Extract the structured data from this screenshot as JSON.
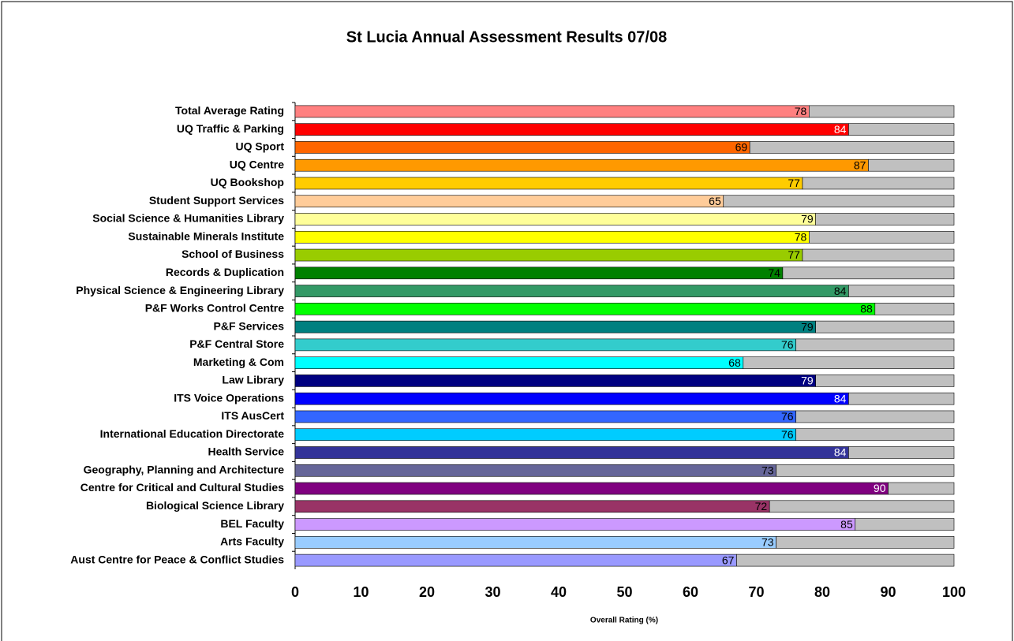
{
  "chart_data": {
    "type": "stacked-bar-horizontal",
    "title": "St Lucia Annual Assessment Results 07/08",
    "xlabel": "Overall Rating (%)",
    "categories": [
      "Total Average Rating",
      "UQ Traffic & Parking",
      "UQ Sport",
      "UQ Centre",
      "UQ Bookshop",
      "Student Support Services",
      "Social Science & Humanities Library",
      "Sustainable Minerals Institute",
      "School of Business",
      "Records & Duplication",
      "Physical Science & Engineering Library",
      "P&F Works Control Centre",
      "P&F Services",
      "P&F Central Store",
      "Marketing & Com",
      "Law Library",
      "ITS Voice Operations",
      "ITS AusCert",
      "International Education Directorate",
      "Health Service",
      "Geography, Planning and Architecture",
      "Centre for Critical and Cultural Studies",
      "Biological Science Library",
      "BEL Faculty",
      "Arts Faculty",
      "Aust Centre for Peace & Conflict Studies"
    ],
    "values": [
      78,
      84,
      69,
      87,
      77,
      65,
      79,
      78,
      77,
      74,
      84,
      88,
      79,
      76,
      68,
      79,
      84,
      76,
      76,
      84,
      73,
      90,
      72,
      85,
      73,
      67
    ],
    "colors": [
      "#ff8080",
      "#ff0000",
      "#ff6600",
      "#ff9900",
      "#ffcc00",
      "#ffcc99",
      "#ffff99",
      "#ffff00",
      "#99cc00",
      "#008000",
      "#339966",
      "#00ff00",
      "#008080",
      "#33cccc",
      "#00ffff",
      "#000080",
      "#0000ff",
      "#3366ff",
      "#00ccff",
      "#333399",
      "#666699",
      "#800080",
      "#993366",
      "#cc99ff",
      "#99ccff",
      "#9999ff"
    ],
    "remainder": [
      22,
      16,
      31,
      13,
      23,
      35,
      21,
      22,
      23,
      26,
      16,
      12,
      21,
      24,
      32,
      21,
      16,
      24,
      24,
      16,
      27,
      10,
      28,
      15,
      27,
      33
    ],
    "remainder_color": "#c0c0c0",
    "xlim": [
      0,
      100
    ],
    "xticks": [
      0,
      10,
      20,
      30,
      40,
      50,
      60,
      70,
      80,
      90,
      100
    ]
  }
}
